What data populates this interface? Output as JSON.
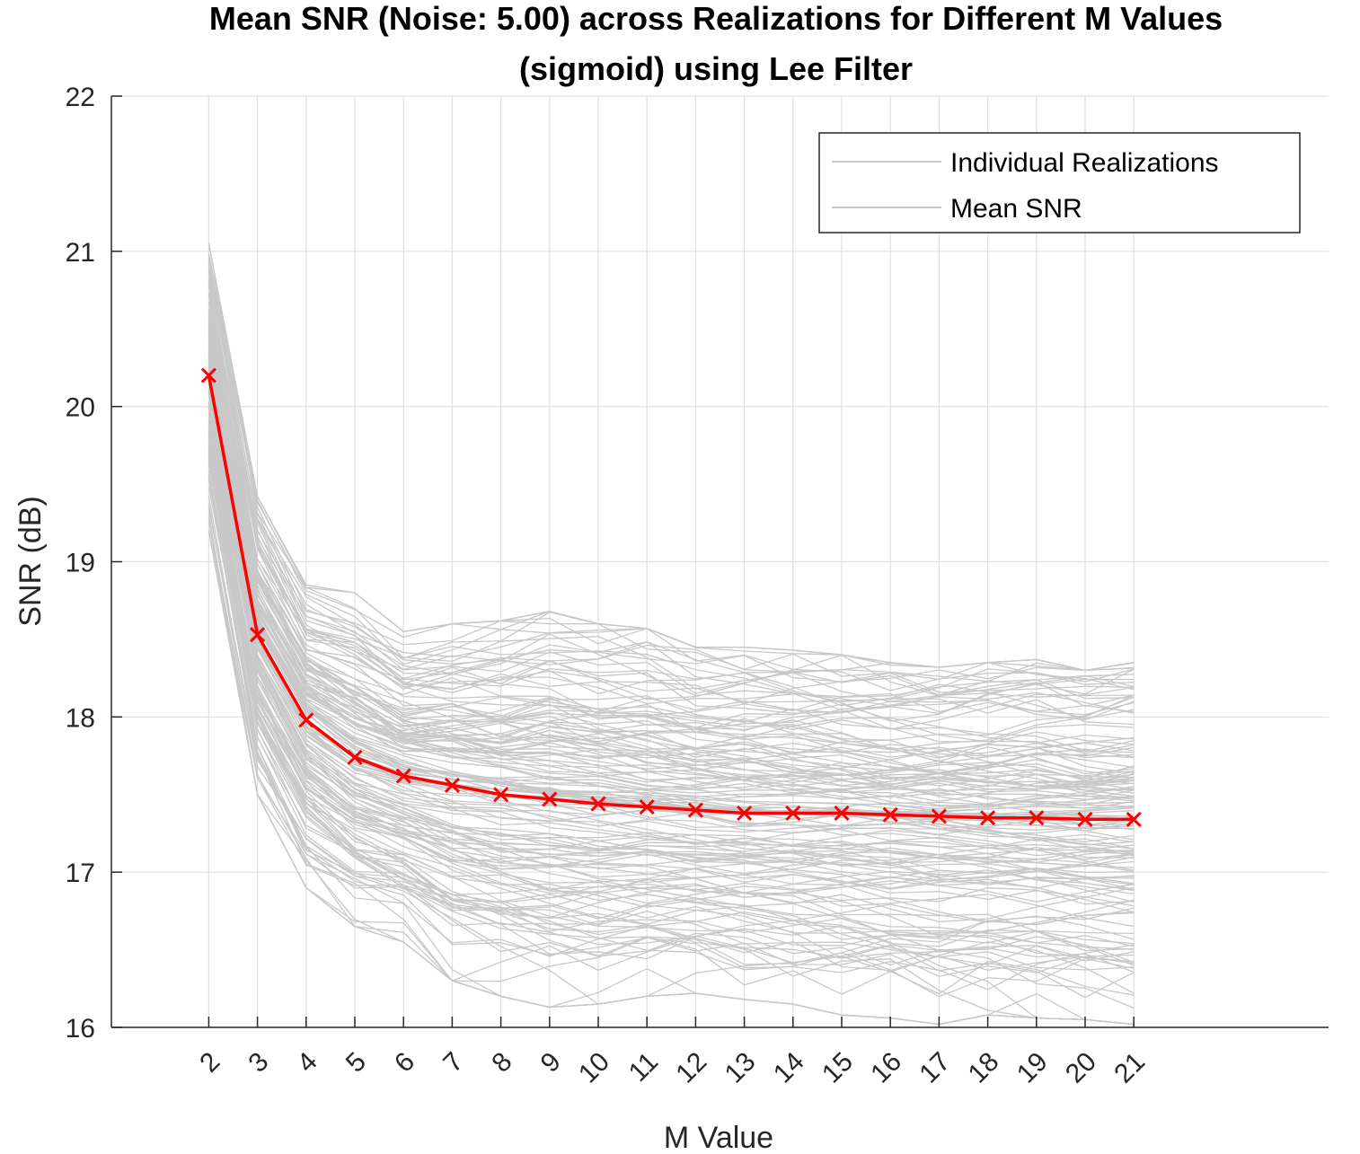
{
  "chart_data": {
    "type": "line",
    "title_line1": "Mean SNR (Noise: 5.00) across Realizations for Different M Values",
    "title_line2": "(sigmoid) using Lee Filter",
    "xlabel": "M Value",
    "ylabel": "SNR (dB)",
    "x": [
      2,
      3,
      4,
      5,
      6,
      7,
      8,
      9,
      10,
      11,
      12,
      13,
      14,
      15,
      16,
      17,
      18,
      19,
      20,
      21
    ],
    "xlim": [
      0,
      25
    ],
    "ylim": [
      16,
      22
    ],
    "yticks": [
      16,
      17,
      18,
      19,
      20,
      21,
      22
    ],
    "grid": true,
    "legend_position": "top-right",
    "legend": [
      "Individual Realizations",
      "Mean SNR"
    ],
    "series": [
      {
        "name": "Mean SNR",
        "color": "#ff0000",
        "marker": "x",
        "values": [
          20.2,
          18.53,
          17.98,
          17.74,
          17.62,
          17.56,
          17.5,
          17.47,
          17.44,
          17.42,
          17.4,
          17.38,
          17.38,
          17.38,
          17.37,
          17.36,
          17.35,
          17.35,
          17.34,
          17.34
        ]
      }
    ],
    "realizations": {
      "name": "Individual Realizations",
      "color": "#c8c8c8",
      "envelope_upper": [
        21.05,
        19.42,
        18.85,
        18.8,
        18.55,
        18.6,
        18.62,
        18.68,
        18.6,
        18.57,
        18.45,
        18.45,
        18.43,
        18.4,
        18.35,
        18.32,
        18.35,
        18.37,
        18.3,
        18.35
      ],
      "envelope_lower": [
        19.2,
        17.5,
        16.9,
        16.65,
        16.55,
        16.3,
        16.2,
        16.13,
        16.15,
        16.2,
        16.22,
        16.18,
        16.15,
        16.08,
        16.06,
        16.02,
        16.08,
        16.06,
        16.05,
        16.02
      ]
    }
  },
  "colors": {
    "realization_line": "#c8c8c8",
    "mean_line": "#ff0000",
    "grid": "#e0e0e0",
    "axis": "#262626"
  }
}
